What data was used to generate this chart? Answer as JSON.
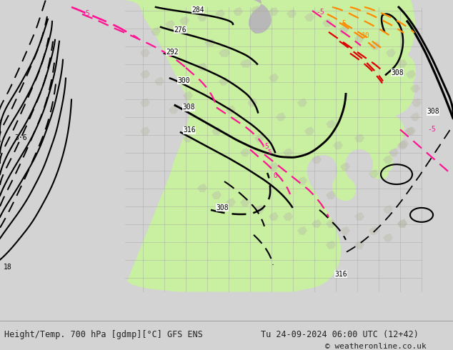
{
  "title_left": "Height/Temp. 700 hPa [gdmp][°C] GFS ENS",
  "title_right": "Tu 24-09-2024 06:00 UTC (12+42)",
  "copyright": "© weatheronline.co.uk",
  "bg_color": "#d3d3d3",
  "land_color": "#c8f0a0",
  "ocean_color": "#d3d3d3",
  "bottom_bar_color": "#e0e0e0",
  "bottom_text_color": "#222222",
  "contour_height_color": "#000000",
  "contour_temp_neg_color": "#ff1493",
  "contour_temp_pos_color": "#ff8c00",
  "contour_temp_red_color": "#cc0000",
  "fig_width": 6.34,
  "fig_height": 4.9,
  "dpi": 100
}
